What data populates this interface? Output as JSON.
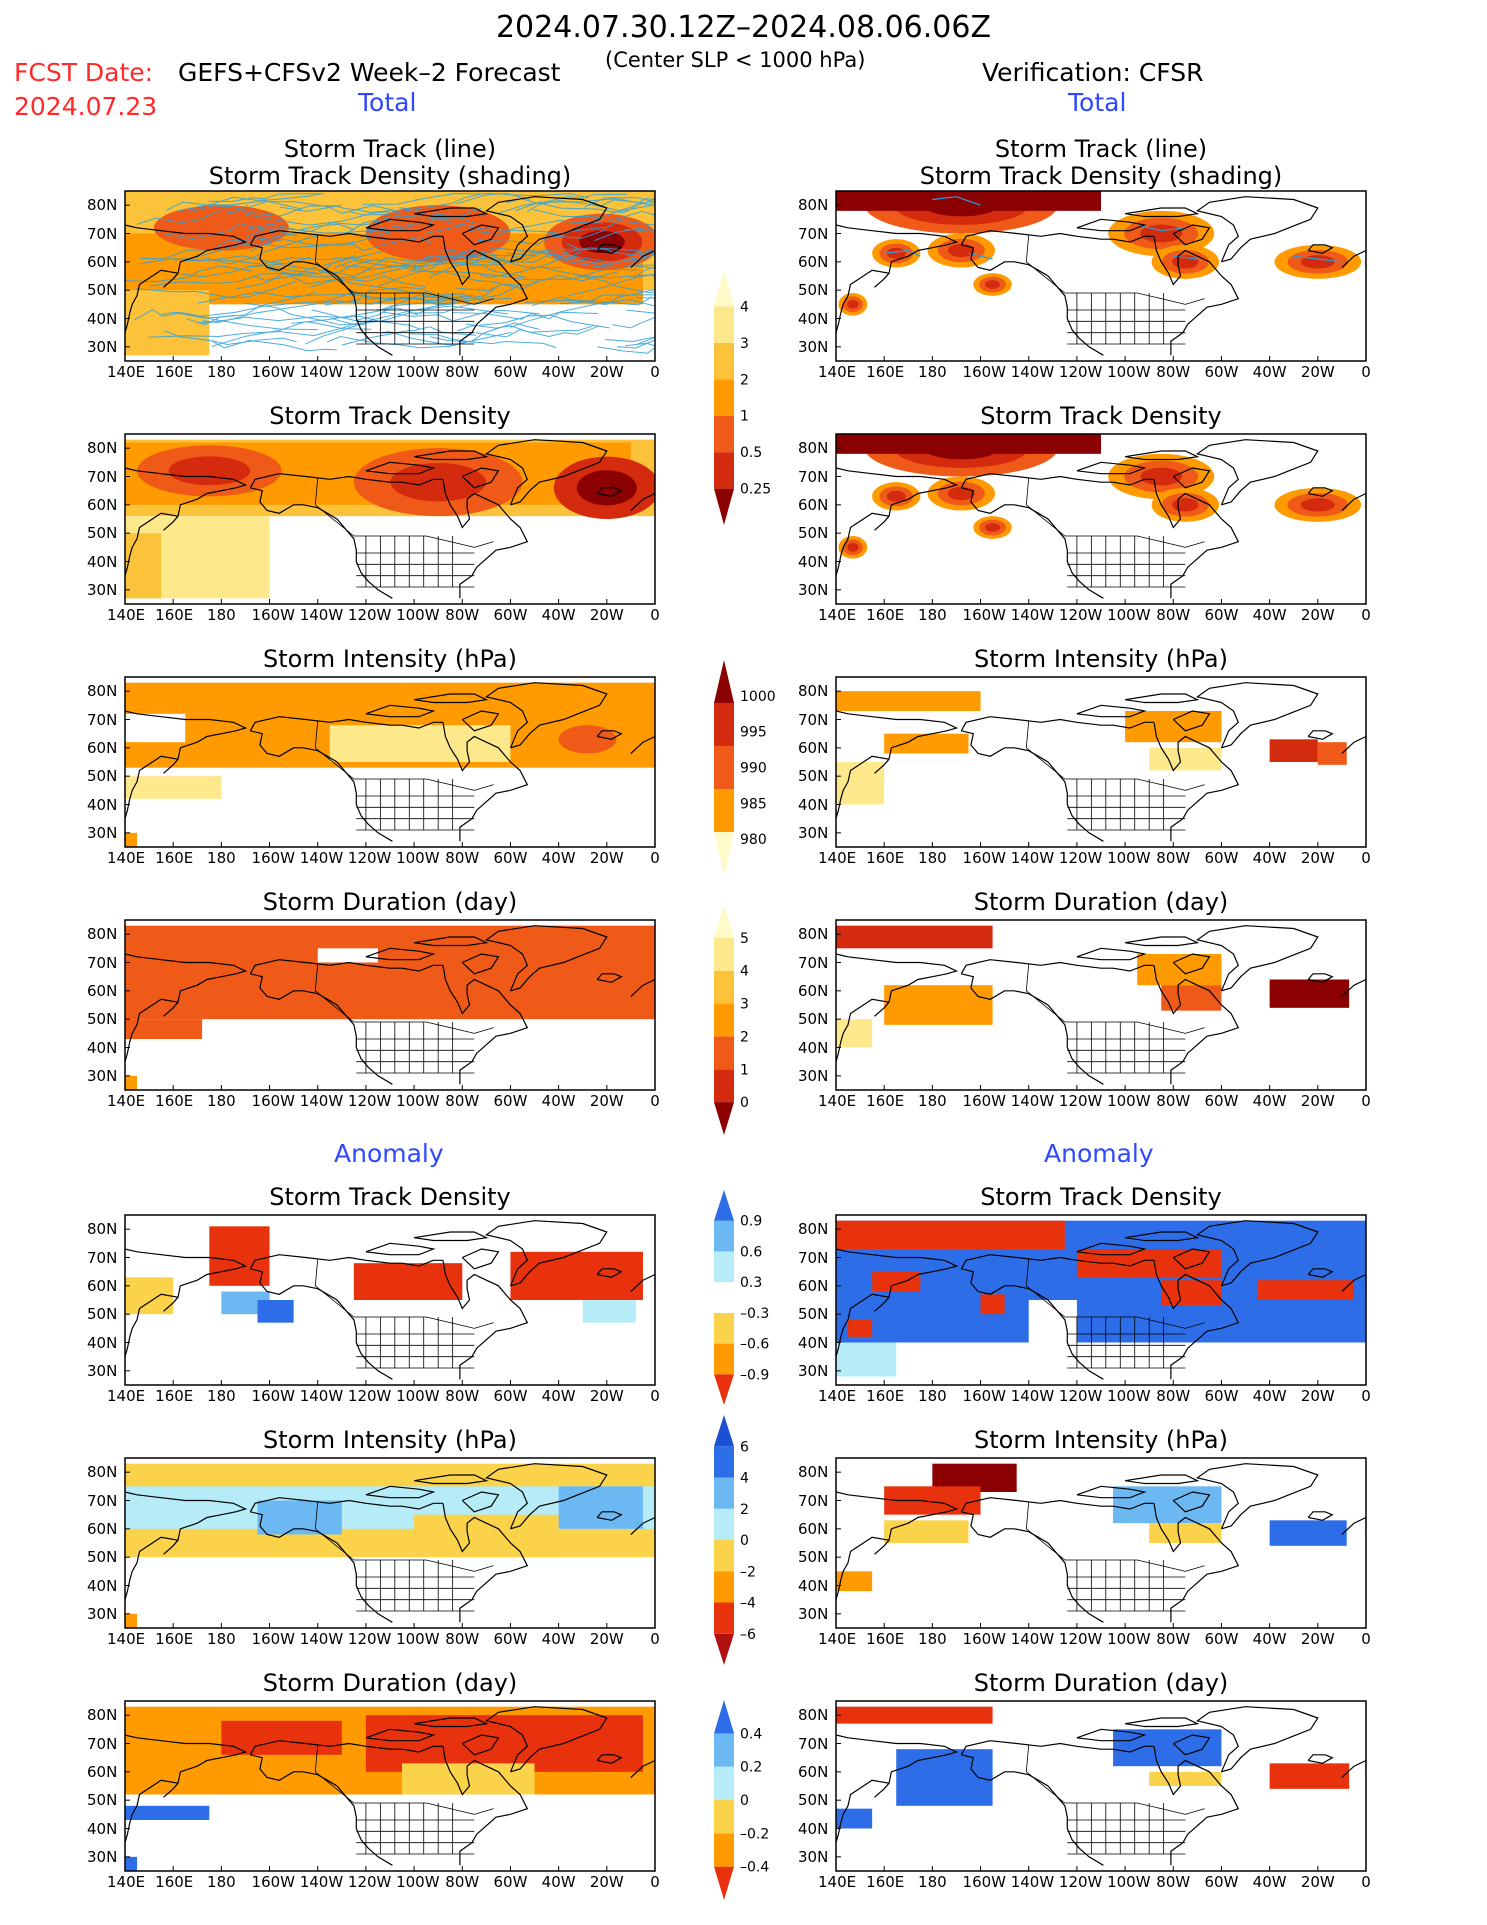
{
  "header": {
    "date_range": "2024.07.30.12Z–2024.08.06.06Z",
    "fcst_label": "FCST Date:",
    "fcst_date": "2024.07.23",
    "model": "GEFS+CFSv2 Week–2 Forecast",
    "criterion": "(Center SLP < 1000 hPa)",
    "verification": "Verification: CFSR"
  },
  "sections": {
    "total": "Total",
    "anomaly": "Anomaly"
  },
  "panel_titles": {
    "track_line": "Storm Track (line)",
    "track_density_shading": "Storm Track Density (shading)",
    "density": "Storm Track Density",
    "intensity": "Storm Intensity (hPa)",
    "duration": "Storm Duration (day)"
  },
  "axes": {
    "lat": [
      "80N",
      "70N",
      "60N",
      "50N",
      "40N",
      "30N"
    ],
    "lon": [
      "140E",
      "160E",
      "180",
      "160W",
      "140W",
      "120W",
      "100W",
      "80W",
      "60W",
      "40W",
      "20W",
      "0"
    ]
  },
  "colorbars": {
    "density": {
      "labels": [
        "4",
        "3",
        "2",
        "1",
        "0.5",
        "0.25"
      ],
      "colors": [
        "#8b0000",
        "#d42a0e",
        "#ef5a19",
        "#ff9a00",
        "#fcc33a",
        "#fde98c",
        "#fefbc8"
      ]
    },
    "intensity": {
      "labels": [
        "1000",
        "995",
        "990",
        "985",
        "980"
      ],
      "colors": [
        "#fefbc8",
        "#ff9a00",
        "#ef5a19",
        "#d42a0e",
        "#8b0000"
      ]
    },
    "duration": {
      "labels": [
        "5",
        "4",
        "3",
        "2",
        "1",
        "0"
      ],
      "colors": [
        "#8b0000",
        "#d42a0e",
        "#ef5a19",
        "#ff9a00",
        "#fcc33a",
        "#fde98c",
        "#fefbc8"
      ]
    },
    "anom_density": {
      "labels": [
        "0.9",
        "0.6",
        "0.3",
        "–0.3",
        "–0.6",
        "–0.9"
      ],
      "colors": [
        "#e8320e",
        "#ff9a00",
        "#fad34a",
        "#ffffff",
        "#b5ecf7",
        "#6cb8f2",
        "#2d6ee8"
      ]
    },
    "anom_intensity": {
      "labels": [
        "6",
        "4",
        "2",
        "0",
        "–2",
        "–4",
        "–6"
      ],
      "colors": [
        "#b01010",
        "#e8320e",
        "#ff9a00",
        "#fad34a",
        "#b5ecf7",
        "#6cb8f2",
        "#2d6ee8",
        "#1a4fd6"
      ]
    },
    "anom_duration": {
      "labels": [
        "0.4",
        "0.2",
        "0",
        "–0.2",
        "–0.4"
      ],
      "colors": [
        "#e8320e",
        "#ff9a00",
        "#fad34a",
        "#b5ecf7",
        "#6cb8f2",
        "#2d6ee8"
      ]
    }
  },
  "colors": {
    "track_line": "#2f9fd8",
    "map_line": "#000000"
  }
}
